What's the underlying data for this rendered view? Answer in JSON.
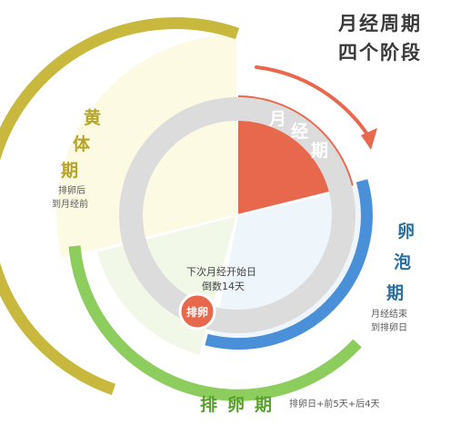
{
  "title": {
    "line1": "月经周期",
    "line2": "四个阶段"
  },
  "phases": {
    "menstrual": {
      "chars": [
        "月",
        "经",
        "期"
      ],
      "color": "#e8684e"
    },
    "follicular": {
      "chars": [
        "卵",
        "泡",
        "期"
      ],
      "note_lines": [
        "月经结束",
        "到排卵日"
      ],
      "color": "#4a90d9"
    },
    "ovulation": {
      "chars": [
        "排",
        "卵",
        "期"
      ],
      "note": "排卵日+前5天+后4天",
      "color": "#8ccd5e"
    },
    "luteal": {
      "chars": [
        "黄",
        "体",
        "期"
      ],
      "note_lines": [
        "排卵后",
        "到月经前"
      ],
      "color": "#c8b93e"
    }
  },
  "center": {
    "lines": [
      "下次月经开始日",
      "倒数14天"
    ]
  },
  "badge": {
    "label": "排卵",
    "color": "#e8684e"
  },
  "colors": {
    "arrow": "#e8684e",
    "inner_ring": "#dcdcdc",
    "text_dark": "#3a3a3a"
  }
}
